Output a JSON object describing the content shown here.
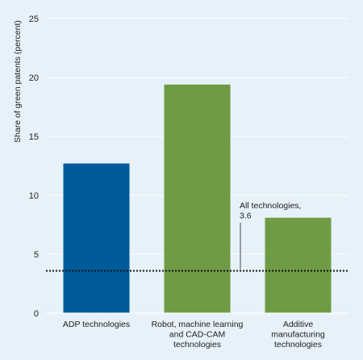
{
  "colors": {
    "background": "#e6f1f9",
    "grid": "#ffffff",
    "blue": "#005b9a",
    "green": "#6f9b45",
    "reference_line": "#111111",
    "text": "#222222"
  },
  "chart_data": {
    "type": "bar",
    "ylabel": "Share of green patents (percent)",
    "xlabel": "",
    "ylim": [
      0,
      25
    ],
    "yticks": [
      0,
      5,
      10,
      15,
      20,
      25
    ],
    "grid": true,
    "categories": [
      [
        "ADP technologies"
      ],
      [
        "Robot, machine learning",
        "and CAD-CAM",
        "technologies"
      ],
      [
        "Additive",
        "manufacturing",
        "technologies"
      ]
    ],
    "values": [
      12.7,
      19.4,
      8.1
    ],
    "bar_colors": [
      "#005b9a",
      "#6f9b45",
      "#6f9b45"
    ],
    "reference_line": {
      "value": 3.6,
      "label_lines": [
        "All technologies,",
        "3.6"
      ],
      "style": "dotted"
    }
  }
}
